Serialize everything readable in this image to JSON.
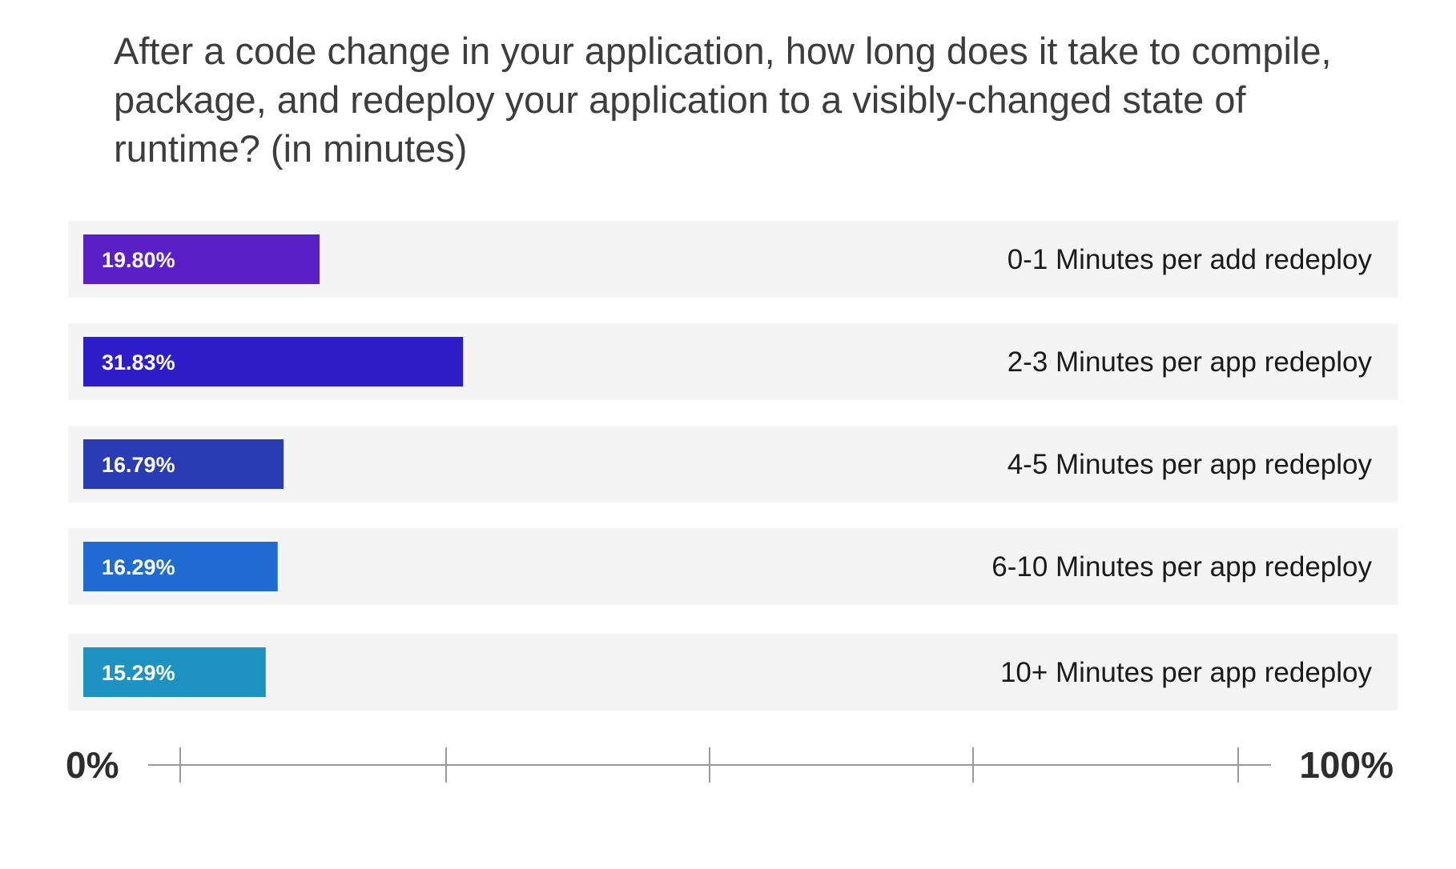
{
  "chart_data": {
    "type": "bar",
    "orientation": "horizontal",
    "title_lines": [
      "After a code change in your application, how long does it take to compile,",
      "package, and redeploy your application to a visibly-changed state of",
      "runtime? (in minutes)"
    ],
    "categories": [
      "0-1 Minutes per add redeploy",
      "2-3 Minutes per app redeploy",
      "4-5 Minutes per app redeploy",
      "6-10 Minutes per app redeploy",
      "10+ Minutes per app redeploy"
    ],
    "values": [
      19.8,
      31.83,
      16.79,
      16.29,
      15.29
    ],
    "value_labels": [
      "19.80%",
      "31.83%",
      "16.79%",
      "16.29%",
      "15.29%"
    ],
    "colors": [
      "#5b1fc6",
      "#2d1ec9",
      "#2a3cb3",
      "#1f6bd1",
      "#1e93c1"
    ],
    "xlim": [
      0,
      100
    ],
    "axis_min_label": "0%",
    "axis_max_label": "100%",
    "grid": false,
    "legend": "none"
  }
}
